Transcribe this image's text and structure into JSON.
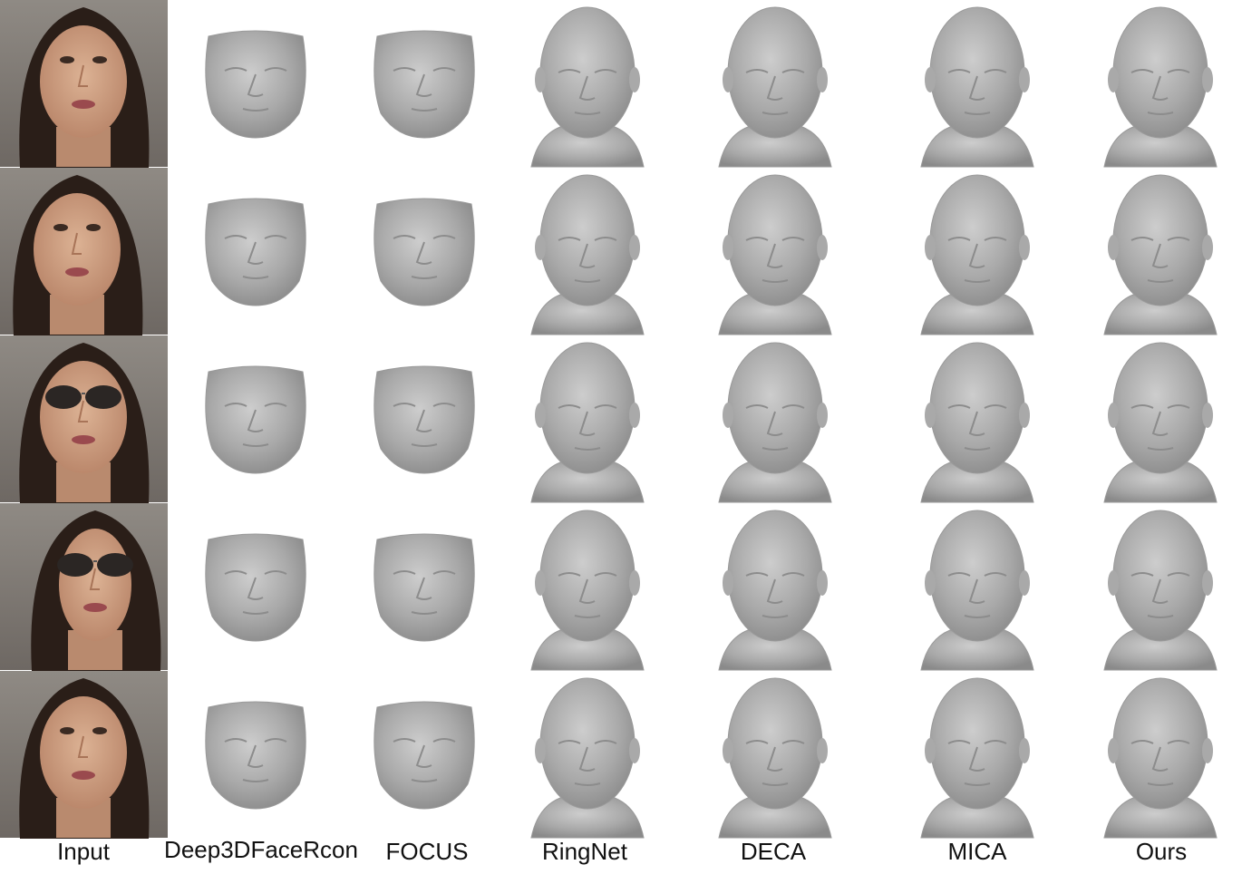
{
  "columns": [
    {
      "label": "Input",
      "kind": "photo"
    },
    {
      "label": "Deep3DFaceRcon",
      "kind": "face-mask"
    },
    {
      "label": "FOCUS",
      "kind": "face-mask"
    },
    {
      "label": "RingNet",
      "kind": "head"
    },
    {
      "label": "DECA",
      "kind": "head"
    },
    {
      "label": "MICA",
      "kind": "head"
    },
    {
      "label": "Ours",
      "kind": "head"
    }
  ],
  "rows": [
    {
      "accessory": "none",
      "pose": "frontal"
    },
    {
      "accessory": "none",
      "pose": "turned"
    },
    {
      "accessory": "sunglasses",
      "pose": "frontal"
    },
    {
      "accessory": "sunglasses",
      "pose": "profile"
    },
    {
      "accessory": "none",
      "pose": "frontal"
    }
  ],
  "colors": {
    "mesh": "#a9a9a9",
    "mesh_light": "#c8c8c8",
    "mesh_dark": "#8c8c8c",
    "photo_bg": "#8a8580",
    "skin": "#c99a7c",
    "hair": "#2a1e18",
    "sunglasses": "#2b2624"
  }
}
